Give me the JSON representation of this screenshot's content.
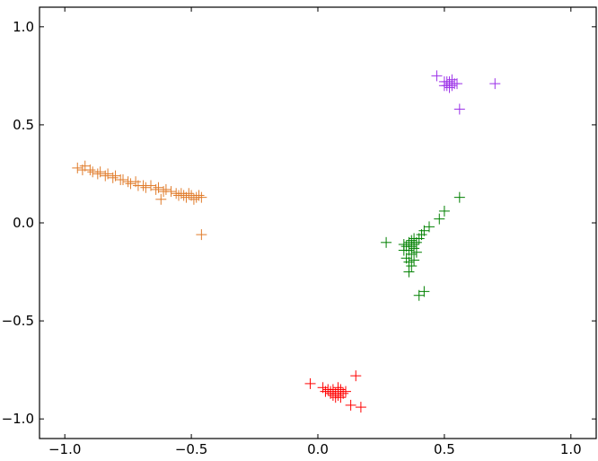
{
  "chart_data": {
    "type": "scatter",
    "title": "",
    "xlabel": "",
    "ylabel": "",
    "xlim": [
      -1.1,
      1.1
    ],
    "ylim": [
      -1.1,
      1.1
    ],
    "xticks": [
      -1.0,
      -0.5,
      0.0,
      0.5,
      1.0
    ],
    "xtick_labels": [
      "−1.0",
      "−0.5",
      "0.0",
      "0.5",
      "1.0"
    ],
    "yticks": [
      1.0,
      0.5,
      0.0,
      -0.5,
      -1.0
    ],
    "ytick_labels": [
      "1.0",
      "0.5",
      "0.0",
      "−0.5",
      "−1.0"
    ],
    "marker": "plus",
    "grid": false,
    "series": [
      {
        "color": "#e07b2a",
        "points": [
          [
            -0.95,
            0.28
          ],
          [
            -0.93,
            0.27
          ],
          [
            -0.92,
            0.29
          ],
          [
            -0.9,
            0.27
          ],
          [
            -0.89,
            0.26
          ],
          [
            -0.87,
            0.25
          ],
          [
            -0.86,
            0.26
          ],
          [
            -0.84,
            0.24
          ],
          [
            -0.83,
            0.25
          ],
          [
            -0.81,
            0.23
          ],
          [
            -0.8,
            0.24
          ],
          [
            -0.78,
            0.22
          ],
          [
            -0.77,
            0.22
          ],
          [
            -0.75,
            0.21
          ],
          [
            -0.74,
            0.2
          ],
          [
            -0.72,
            0.21
          ],
          [
            -0.71,
            0.19
          ],
          [
            -0.69,
            0.19
          ],
          [
            -0.68,
            0.18
          ],
          [
            -0.66,
            0.19
          ],
          [
            -0.64,
            0.17
          ],
          [
            -0.63,
            0.18
          ],
          [
            -0.61,
            0.16
          ],
          [
            -0.6,
            0.17
          ],
          [
            -0.58,
            0.16
          ],
          [
            -0.56,
            0.15
          ],
          [
            -0.54,
            0.15
          ],
          [
            -0.53,
            0.14
          ],
          [
            -0.51,
            0.15
          ],
          [
            -0.5,
            0.14
          ],
          [
            -0.48,
            0.13
          ],
          [
            -0.47,
            0.14
          ],
          [
            -0.46,
            0.13
          ],
          [
            -0.49,
            0.12
          ],
          [
            -0.52,
            0.13
          ],
          [
            -0.55,
            0.14
          ],
          [
            -0.62,
            0.12
          ],
          [
            -0.46,
            -0.06
          ]
        ]
      },
      {
        "color": "#9b30e8",
        "points": [
          [
            0.47,
            0.75
          ],
          [
            0.5,
            0.72
          ],
          [
            0.51,
            0.7
          ],
          [
            0.52,
            0.71
          ],
          [
            0.53,
            0.73
          ],
          [
            0.52,
            0.69
          ],
          [
            0.51,
            0.72
          ],
          [
            0.54,
            0.71
          ],
          [
            0.5,
            0.7
          ],
          [
            0.53,
            0.7
          ],
          [
            0.55,
            0.71
          ],
          [
            0.52,
            0.72
          ],
          [
            0.7,
            0.71
          ],
          [
            0.56,
            0.58
          ]
        ]
      },
      {
        "color": "#008000",
        "points": [
          [
            0.27,
            -0.1
          ],
          [
            0.34,
            -0.11
          ],
          [
            0.35,
            -0.12
          ],
          [
            0.36,
            -0.1
          ],
          [
            0.37,
            -0.09
          ],
          [
            0.38,
            -0.08
          ],
          [
            0.36,
            -0.14
          ],
          [
            0.37,
            -0.16
          ],
          [
            0.38,
            -0.13
          ],
          [
            0.39,
            -0.1
          ],
          [
            0.4,
            -0.08
          ],
          [
            0.41,
            -0.06
          ],
          [
            0.35,
            -0.18
          ],
          [
            0.36,
            -0.2
          ],
          [
            0.37,
            -0.22
          ],
          [
            0.38,
            -0.19
          ],
          [
            0.34,
            -0.14
          ],
          [
            0.38,
            -0.11
          ],
          [
            0.42,
            -0.04
          ],
          [
            0.44,
            -0.02
          ],
          [
            0.48,
            0.02
          ],
          [
            0.5,
            0.06
          ],
          [
            0.56,
            0.13
          ],
          [
            0.4,
            -0.37
          ],
          [
            0.42,
            -0.35
          ],
          [
            0.36,
            -0.25
          ],
          [
            0.39,
            -0.15
          ],
          [
            0.37,
            -0.12
          ]
        ]
      },
      {
        "color": "#ff0000",
        "points": [
          [
            -0.03,
            -0.82
          ],
          [
            0.02,
            -0.84
          ],
          [
            0.04,
            -0.85
          ],
          [
            0.05,
            -0.86
          ],
          [
            0.06,
            -0.85
          ],
          [
            0.07,
            -0.87
          ],
          [
            0.08,
            -0.86
          ],
          [
            0.09,
            -0.85
          ],
          [
            0.1,
            -0.87
          ],
          [
            0.06,
            -0.88
          ],
          [
            0.07,
            -0.89
          ],
          [
            0.08,
            -0.88
          ],
          [
            0.09,
            -0.89
          ],
          [
            0.05,
            -0.87
          ],
          [
            0.11,
            -0.86
          ],
          [
            0.15,
            -0.78
          ],
          [
            0.13,
            -0.93
          ],
          [
            0.17,
            -0.94
          ],
          [
            0.03,
            -0.86
          ],
          [
            0.08,
            -0.84
          ]
        ]
      }
    ]
  }
}
